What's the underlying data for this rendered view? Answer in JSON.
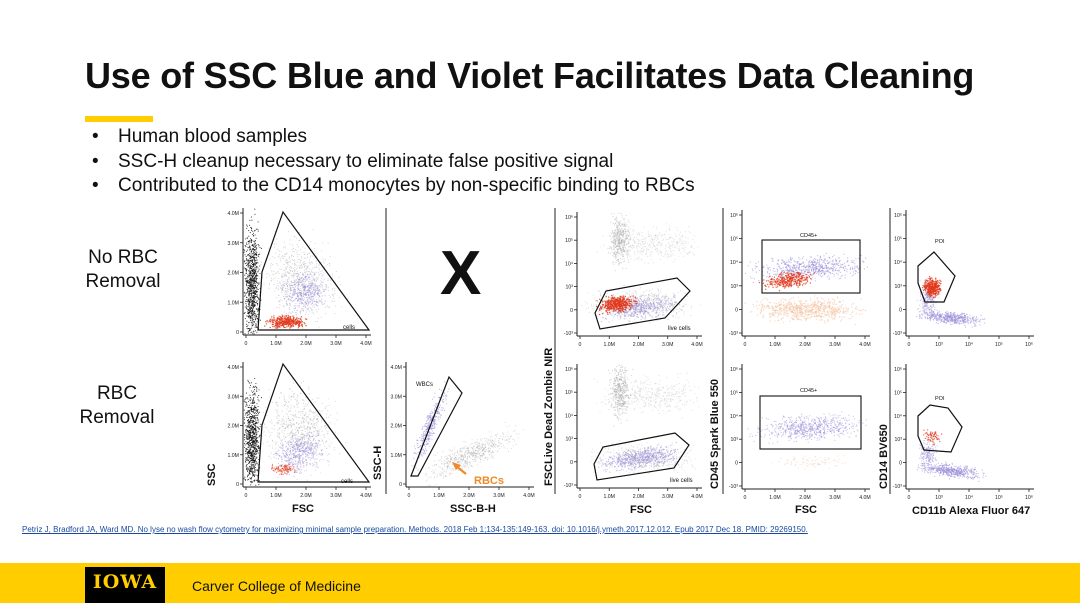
{
  "slide": {
    "title": "Use of SSC Blue and Violet Facilitates Data Cleaning",
    "bullets": [
      "Human blood samples",
      "SSC-H cleanup necessary to eliminate false positive signal",
      "Contributed to the CD14 monocytes by non-specific binding to RBCs"
    ],
    "bullet_symbol": "•",
    "row_labels": {
      "top_line1": "No RBC",
      "top_line2": "Removal",
      "bottom_line1": "RBC",
      "bottom_line2": "Removal"
    },
    "x_mark": "X",
    "citation": "Petriz J, Bradford JA, Ward MD. No lyse no wash flow cytometry for maximizing minimal sample preparation. Methods. 2018 Feb 1;134-135:149-163. doi: 10.1016/j.ymeth.2017.12.012. Epub 2017 Dec 18. PMID: 29269150."
  },
  "footer": {
    "logo": "IOWA",
    "college": "Carver College of Medicine"
  },
  "axis_titles": {
    "ssc_y": "SSC",
    "ssch_y": "SSC-H",
    "viability_y": "FSCLive Dead Zombie NIR",
    "cd45_y": "CD45 Spark Blue 550",
    "cd14_y": "CD14 BV650",
    "fsc_x1": "FSC",
    "sscbh_x": "SSC-B-H",
    "fsc_x2": "FSC",
    "fsc_x3": "FSC",
    "cd11b_x": "CD11b Alexa Fluor 647"
  },
  "gate_labels": {
    "cells": "cells",
    "wbcs": "WBCs",
    "rbcs": "RBCs",
    "live_cells": "live cells",
    "cd45pos": "CD45+",
    "poi": "POI"
  },
  "tick_labels": {
    "linear_x": [
      "0",
      "1.0M",
      "2.0M",
      "3.0M",
      "4.0M"
    ],
    "linear_y": [
      "4.0M",
      "3.0M",
      "2.0M",
      "1.0M",
      "0"
    ],
    "log_y": [
      "10⁶",
      "10⁵",
      "10⁴",
      "10³",
      "0",
      "-10³"
    ],
    "log_x": [
      "0",
      "10³",
      "10⁴",
      "10⁵",
      "10⁶"
    ]
  },
  "colors": {
    "accent_yellow": "#FFCD00",
    "events_gray": "#a8a8a8",
    "events_black": "#111111",
    "events_purple": "#9b8fd8",
    "events_red": "#e23a1d",
    "events_peach": "#f4c4a4",
    "rbc_arrow": "#ee8a2a",
    "citation_blue": "#1a4aa0"
  }
}
